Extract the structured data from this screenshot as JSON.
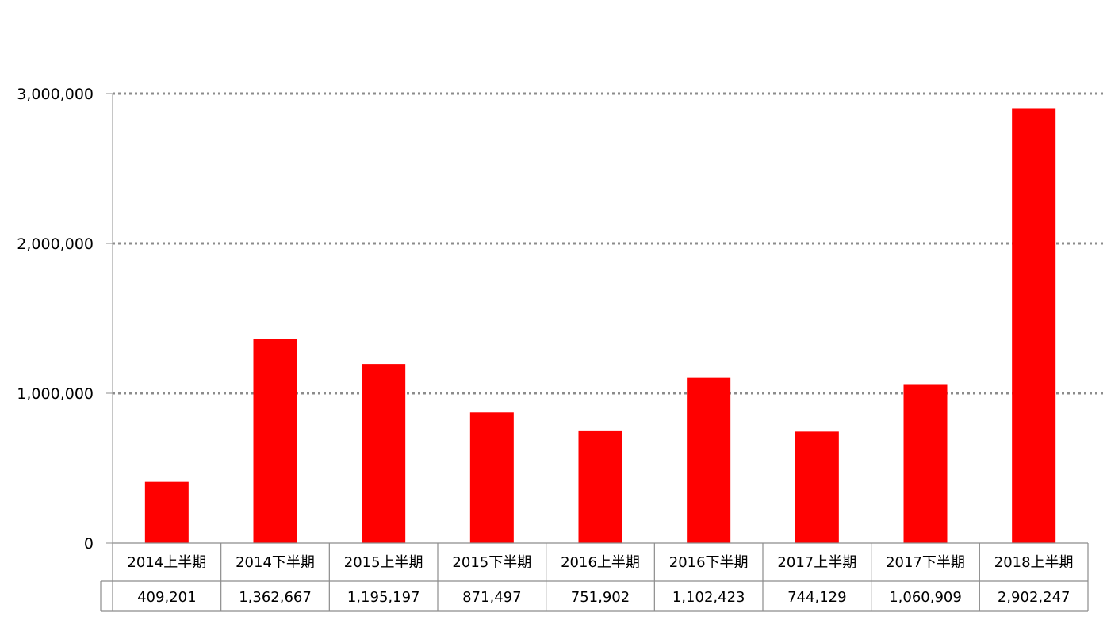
{
  "chart_data": {
    "type": "bar",
    "title": "",
    "xlabel": "",
    "ylabel": "",
    "categories": [
      "2014上半期",
      "2014下半期",
      "2015上半期",
      "2015下半期",
      "2016上半期",
      "2016下半期",
      "2017上半期",
      "2017下半期",
      "2018上半期"
    ],
    "values": [
      409201,
      1362667,
      1195197,
      871497,
      751902,
      1102423,
      744129,
      1060909,
      2902247
    ],
    "value_labels": [
      "409,201",
      "1,362,667",
      "1,195,197",
      "871,497",
      "751,902",
      "1,102,423",
      "744,129",
      "1,060,909",
      "2,902,247"
    ],
    "ylim": [
      0,
      3000000
    ],
    "yticks": [
      0,
      1000000,
      2000000,
      3000000
    ],
    "ytick_labels": [
      "0",
      "1,000,000",
      "2,000,000",
      "3,000,000"
    ],
    "grid": "horizontal dotted",
    "data_table": true,
    "legend": "none",
    "colors": {
      "bar": "#ff0000",
      "grid": "#8c8c8c",
      "axis": "#8c8c8c"
    }
  }
}
